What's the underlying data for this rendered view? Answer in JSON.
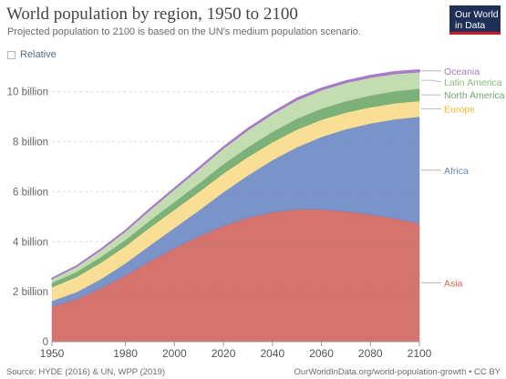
{
  "header": {
    "title": "World population by region, 1950 to 2100",
    "subtitle": "Projected population to 2100 is based on the UN's medium population scenario.",
    "logo_line1": "Our World",
    "logo_line2": "in Data"
  },
  "controls": {
    "relative_label": "Relative"
  },
  "footer": {
    "source": "Source: HYDE (2016) & UN, WPP (2019)",
    "credit": "OurWorldInData.org/world-population-growth • CC BY"
  },
  "colors": {
    "Asia": "#d0655f",
    "Africa": "#6b87c3",
    "Europe": "#f8dc8a",
    "North America": "#6ea86a",
    "Latin America": "#bcd8a9",
    "Oceania": "#a678c8"
  },
  "chart_data": {
    "type": "area",
    "stacked": true,
    "x": [
      1950,
      1960,
      1970,
      1980,
      1990,
      2000,
      2010,
      2020,
      2030,
      2040,
      2050,
      2060,
      2070,
      2080,
      2090,
      2100
    ],
    "xticks": [
      1950,
      1980,
      2000,
      2020,
      2040,
      2060,
      2080,
      2100
    ],
    "ylim": [
      0,
      10.9
    ],
    "yticks": [
      0,
      2,
      4,
      6,
      8,
      10
    ],
    "ytick_labels": [
      "0",
      "2 billion",
      "4 billion",
      "6 billion",
      "8 billion",
      "10 billion"
    ],
    "grid": true,
    "series": [
      {
        "name": "Asia",
        "values": [
          1.4,
          1.7,
          2.14,
          2.65,
          3.21,
          3.74,
          4.21,
          4.64,
          4.96,
          5.18,
          5.29,
          5.29,
          5.21,
          5.09,
          4.93,
          4.72
        ]
      },
      {
        "name": "Africa",
        "values": [
          0.23,
          0.28,
          0.36,
          0.48,
          0.64,
          0.81,
          1.04,
          1.34,
          1.69,
          2.08,
          2.49,
          2.9,
          3.29,
          3.64,
          3.97,
          4.28
        ]
      },
      {
        "name": "Europe",
        "values": [
          0.55,
          0.61,
          0.66,
          0.69,
          0.72,
          0.73,
          0.74,
          0.75,
          0.74,
          0.72,
          0.71,
          0.69,
          0.67,
          0.65,
          0.64,
          0.63
        ]
      },
      {
        "name": "North America",
        "values": [
          0.17,
          0.2,
          0.23,
          0.25,
          0.28,
          0.31,
          0.34,
          0.37,
          0.39,
          0.41,
          0.43,
          0.44,
          0.45,
          0.47,
          0.48,
          0.49
        ]
      },
      {
        "name": "Latin America",
        "values": [
          0.17,
          0.22,
          0.29,
          0.36,
          0.44,
          0.52,
          0.59,
          0.65,
          0.7,
          0.73,
          0.76,
          0.76,
          0.75,
          0.73,
          0.71,
          0.68
        ]
      },
      {
        "name": "Oceania",
        "values": [
          0.01,
          0.02,
          0.02,
          0.02,
          0.03,
          0.03,
          0.04,
          0.04,
          0.05,
          0.05,
          0.06,
          0.06,
          0.06,
          0.07,
          0.07,
          0.07
        ]
      }
    ],
    "labels": [
      {
        "name": "Oceania",
        "text": "Oceania"
      },
      {
        "name": "Latin America",
        "text": "Latin America"
      },
      {
        "name": "North America",
        "text": "North America"
      },
      {
        "name": "Europe",
        "text": "Europe"
      },
      {
        "name": "Africa",
        "text": "Africa"
      },
      {
        "name": "Asia",
        "text": "Asia"
      }
    ]
  }
}
